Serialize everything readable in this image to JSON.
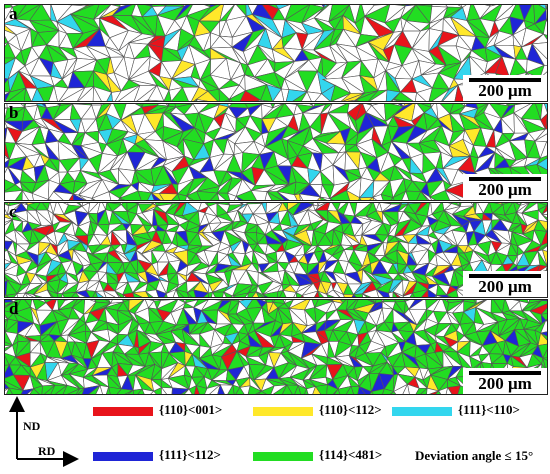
{
  "colors": {
    "goss": "#e8141b",
    "brass": "#ffe82a",
    "rotcube": "#33d6ee",
    "gamma112": "#1f25d6",
    "texture114": "#22dd22",
    "boundary": "#555555",
    "background": "#ffffff"
  },
  "panels": [
    {
      "label": "a",
      "scale_text": "200 μm",
      "fractions": {
        "goss": 0.03,
        "brass": 0.04,
        "rotcube": 0.05,
        "gamma112": 0.05,
        "texture114": 0.3
      }
    },
    {
      "label": "b",
      "scale_text": "200 μm",
      "fractions": {
        "goss": 0.03,
        "brass": 0.03,
        "rotcube": 0.03,
        "gamma112": 0.08,
        "texture114": 0.4
      }
    },
    {
      "label": "c",
      "scale_text": "200 μm",
      "fractions": {
        "goss": 0.05,
        "brass": 0.05,
        "rotcube": 0.04,
        "gamma112": 0.08,
        "texture114": 0.34
      }
    },
    {
      "label": "d",
      "scale_text": "200 μm",
      "fractions": {
        "goss": 0.03,
        "brass": 0.03,
        "rotcube": 0.02,
        "gamma112": 0.07,
        "texture114": 0.55
      }
    }
  ],
  "axes": {
    "nd_label": "ND",
    "rd_label": "RD"
  },
  "legend": {
    "items": [
      {
        "key": "goss",
        "label": "{110}<001>",
        "color": "#e8141b"
      },
      {
        "key": "brass",
        "label": "{110}<112>",
        "color": "#ffe82a"
      },
      {
        "key": "rotcube",
        "label": "{111}<110>",
        "color": "#33d6ee"
      },
      {
        "key": "gamma112",
        "label": "{111}<112>",
        "color": "#1f25d6"
      },
      {
        "key": "texture114",
        "label": "{114}<481>",
        "color": "#22dd22"
      }
    ],
    "deviation_text": "Deviation angle ≤ 15°"
  }
}
